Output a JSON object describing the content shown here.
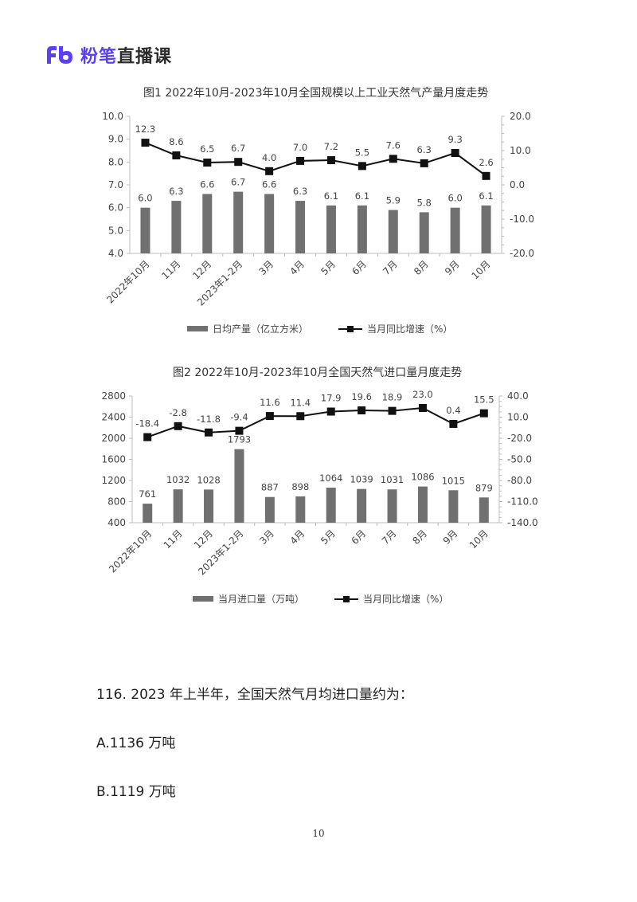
{
  "header": {
    "brand": "粉笔",
    "product": "直播课",
    "brand_color": "#5b3ff0"
  },
  "chart_data": [
    {
      "type": "bar+line",
      "title": "图1 2022年10月-2023年10月全国规模以上工业天然气产量月度走势",
      "categories": [
        "2022年10月",
        "11月",
        "12月",
        "2023年1-2月",
        "3月",
        "4月",
        "5月",
        "6月",
        "7月",
        "8月",
        "9月",
        "10月"
      ],
      "series": [
        {
          "name": "日均产量（亿立方米）",
          "type": "bar",
          "axis": "left",
          "color": "#707070",
          "values": [
            6.0,
            6.3,
            6.6,
            6.7,
            6.6,
            6.3,
            6.1,
            6.1,
            5.9,
            5.8,
            6.0,
            6.1
          ]
        },
        {
          "name": "当月同比增速（%）",
          "type": "line",
          "axis": "right",
          "color": "#111111",
          "values": [
            12.3,
            8.6,
            6.5,
            6.7,
            4.0,
            7.0,
            7.2,
            5.5,
            7.6,
            6.3,
            9.3,
            2.6
          ]
        }
      ],
      "left_axis": {
        "ticks": [
          "10.0",
          "9.0",
          "8.0",
          "7.0",
          "6.0",
          "5.0",
          "4.0"
        ],
        "min": 4.0,
        "max": 10.0
      },
      "right_axis": {
        "ticks": [
          "20.0",
          "10.0",
          "0.0",
          "-10.0",
          "-20.0"
        ],
        "min": -20.0,
        "max": 20.0
      },
      "legend_position": "bottom",
      "grid": false
    },
    {
      "type": "bar+line",
      "title": "图2 2022年10月-2023年10月全国天然气进口量月度走势",
      "categories": [
        "2022年10月",
        "11月",
        "12月",
        "2023年1-2月",
        "3月",
        "4月",
        "5月",
        "6月",
        "7月",
        "8月",
        "9月",
        "10月"
      ],
      "series": [
        {
          "name": "当月进口量（万吨）",
          "type": "bar",
          "axis": "left",
          "color": "#707070",
          "values": [
            761,
            1032,
            1028,
            1793,
            887,
            898,
            1064,
            1039,
            1031,
            1086,
            1015,
            879
          ]
        },
        {
          "name": "当月同比增速（%）",
          "type": "line",
          "axis": "right",
          "color": "#111111",
          "values": [
            -18.4,
            -2.8,
            -11.8,
            -9.4,
            11.6,
            11.4,
            17.9,
            19.6,
            18.9,
            23.0,
            0.4,
            15.5
          ]
        }
      ],
      "left_axis": {
        "ticks": [
          "2800",
          "2400",
          "2000",
          "1600",
          "1200",
          "800",
          "400"
        ],
        "min": 400,
        "max": 2800
      },
      "right_axis": {
        "ticks": [
          "40.0",
          "10.0",
          "-20.0",
          "-50.0",
          "-80.0",
          "-110.0",
          "-140.0"
        ],
        "min": -140.0,
        "max": 40.0
      },
      "legend_position": "bottom",
      "grid": false
    }
  ],
  "charts": {
    "chart1": {
      "title": "图1 2022年10月-2023年10月全国规模以上工业天然气产量月度走势",
      "legend_bar": "日均产量（亿立方米）",
      "legend_line": "当月同比增速（%）"
    },
    "chart2": {
      "title": "图2 2022年10月-2023年10月全国天然气进口量月度走势",
      "legend_bar": "当月进口量（万吨）",
      "legend_line": "当月同比增速（%）"
    }
  },
  "question": {
    "stem": "116. 2023 年上半年，全国天然气月均进口量约为：",
    "options": [
      {
        "label": "A.1136 万吨"
      },
      {
        "label": "B.1119 万吨"
      }
    ]
  },
  "footer": {
    "page_number": "10"
  }
}
